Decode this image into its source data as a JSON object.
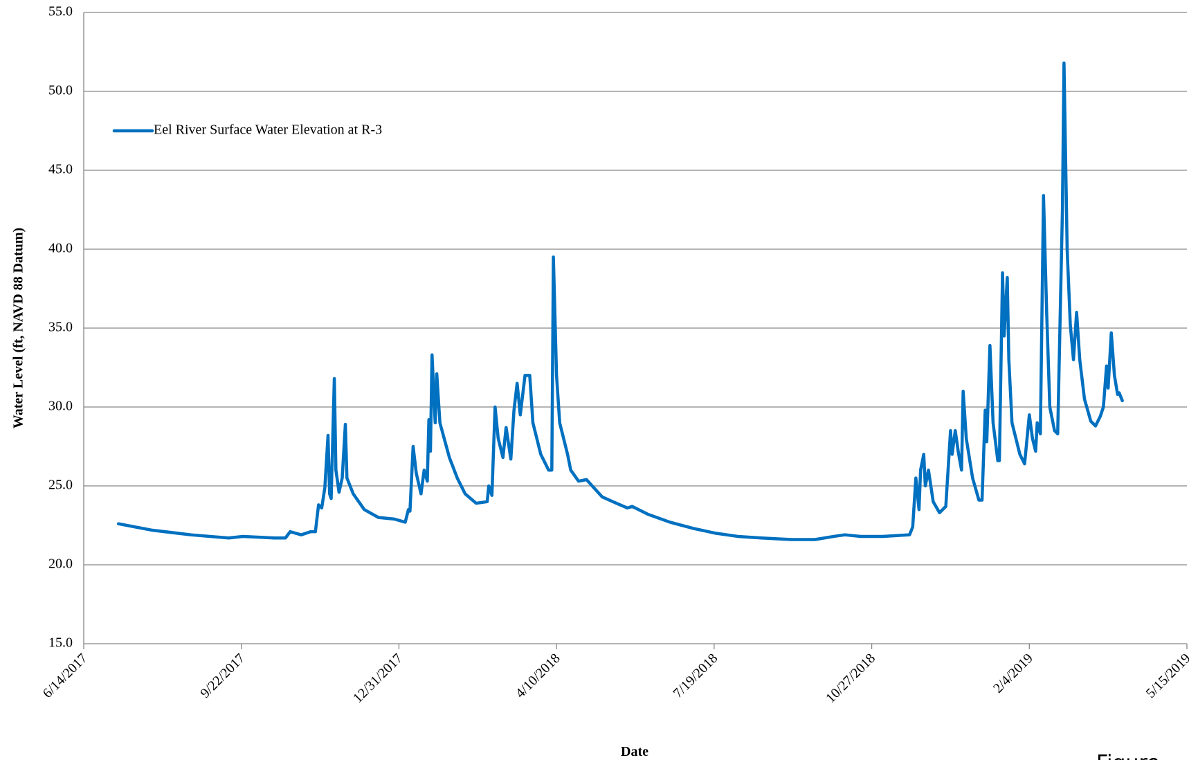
{
  "chart_data": {
    "type": "line",
    "y_label": "Water Level (ft, NAVD 88 Datum)",
    "x_label": "Date",
    "annotation": "Figure",
    "legend": "upper left",
    "grid": true,
    "x": [
      "7/6/2017",
      "7/27/2017",
      "8/21/2017",
      "9/14/2017",
      "9/23/2017",
      "10/13/2017",
      "10/20/2017",
      "10/23/2017",
      "10/30/2017",
      "11/5/2017",
      "11/8/2017",
      "11/10/2017",
      "11/12/2017",
      "11/14/2017",
      "11/16/2017",
      "11/17/2017",
      "11/18/2017",
      "11/20/2017",
      "11/21/2017",
      "11/23/2017",
      "11/25/2017",
      "11/27/2017",
      "11/28/2017",
      "12/2/2017",
      "12/9/2017",
      "12/18/2017",
      "12/28/2017",
      "1/4/2018",
      "1/6/2018",
      "1/7/2018",
      "1/9/2018",
      "1/11/2018",
      "1/14/2018",
      "1/16/2018",
      "1/18/2018",
      "1/19/2018",
      "1/20/2018",
      "1/21/2018",
      "1/23/2018",
      "1/24/2018",
      "1/26/2018",
      "2/1/2018",
      "2/6/2018",
      "2/11/2018",
      "2/18/2018",
      "2/25/2018",
      "2/26/2018",
      "2/28/2018",
      "3/2/2018",
      "3/4/2018",
      "3/7/2018",
      "3/9/2018",
      "3/12/2018",
      "3/14/2018",
      "3/16/2018",
      "3/18/2018",
      "3/21/2018",
      "3/24/2018",
      "3/26/2018",
      "3/31/2018",
      "4/5/2018",
      "4/7/2018",
      "4/8/2018",
      "4/10/2018",
      "4/12/2018",
      "4/14/2018",
      "4/17/2018",
      "4/19/2018",
      "4/24/2018",
      "4/29/2018",
      "5/9/2018",
      "5/18/2018",
      "5/25/2018",
      "5/28/2018",
      "6/7/2018",
      "6/21/2018",
      "7/6/2018",
      "7/20/2018",
      "8/3/2018",
      "8/18/2018",
      "9/6/2018",
      "9/21/2018",
      "10/3/2018",
      "10/10/2018",
      "10/20/2018",
      "11/3/2018",
      "11/20/2018",
      "11/22/2018",
      "11/24/2018",
      "11/26/2018",
      "11/27/2018",
      "11/29/2018",
      "11/30/2018",
      "12/2/2018",
      "12/5/2018",
      "12/9/2018",
      "12/13/2018",
      "12/16/2018",
      "12/17/2018",
      "12/19/2018",
      "12/21/2018",
      "12/23/2018",
      "12/24/2018",
      "12/26/2018",
      "12/30/2018",
      "1/3/2019",
      "1/5/2019",
      "1/7/2019",
      "1/8/2019",
      "1/10/2019",
      "1/12/2019",
      "1/15/2019",
      "1/16/2019",
      "1/18/2019",
      "1/19/2019",
      "1/21/2019",
      "1/22/2019",
      "1/24/2019",
      "1/29/2019",
      "2/1/2019",
      "2/4/2019",
      "2/6/2019",
      "2/8/2019",
      "2/9/2019",
      "2/11/2019",
      "2/13/2019",
      "2/15/2019",
      "2/17/2019",
      "2/20/2019",
      "2/22/2019",
      "2/25/2019",
      "2/26/2019",
      "2/28/2019",
      "3/2/2019",
      "3/4/2019",
      "3/6/2019",
      "3/8/2019",
      "3/11/2019",
      "3/15/2019",
      "3/18/2019",
      "3/21/2019",
      "3/23/2019",
      "3/25/2019",
      "3/26/2019",
      "3/28/2019",
      "3/30/2019",
      "4/1/2019",
      "4/2/2019",
      "4/4/2019"
    ],
    "series": [
      {
        "name": "Eel River Surface Water Elevation at R-3",
        "color": "#0070c0",
        "values": [
          22.6,
          22.2,
          21.9,
          21.7,
          21.8,
          21.7,
          21.7,
          22.1,
          21.9,
          22.1,
          22.1,
          23.8,
          23.6,
          24.9,
          28.2,
          24.5,
          24.2,
          31.8,
          26,
          24.6,
          25.5,
          28.9,
          25.5,
          24.5,
          23.5,
          23,
          22.9,
          22.7,
          23.5,
          23.4,
          27.5,
          25.8,
          24.5,
          26,
          25.3,
          29.2,
          27.2,
          33.3,
          29,
          32.1,
          29,
          26.8,
          25.5,
          24.5,
          23.9,
          24,
          25,
          24.4,
          30,
          28,
          26.8,
          28.7,
          26.7,
          29.8,
          31.5,
          29.5,
          32,
          32,
          29,
          27,
          26,
          26,
          39.5,
          32,
          29,
          28.2,
          27,
          26,
          25.3,
          25.4,
          24.3,
          23.9,
          23.6,
          23.7,
          23.2,
          22.7,
          22.3,
          22,
          21.8,
          21.7,
          21.6,
          21.6,
          21.8,
          21.9,
          21.8,
          21.8,
          21.9,
          22.4,
          25.5,
          23.5,
          26,
          27,
          25,
          26,
          24,
          23.3,
          23.7,
          28.5,
          27,
          28.5,
          27.1,
          26,
          31,
          28,
          25.5,
          24.1,
          24.1,
          29.8,
          27.8,
          33.9,
          29,
          26.6,
          26.6,
          38.5,
          34.5,
          38.2,
          33,
          29,
          27,
          26.4,
          29.5,
          28,
          27.2,
          29,
          28.3,
          43.4,
          36,
          30,
          28.5,
          28.3,
          42.5,
          51.8,
          40,
          35.2,
          33,
          36,
          33,
          30.5,
          29.1,
          28.8,
          29.4,
          30,
          32.6,
          31.2,
          34.7,
          32,
          30.8,
          30.9,
          30.4
        ]
      }
    ],
    "xlim": [
      "6/14/2017",
      "5/15/2019"
    ],
    "xticks": [
      "6/14/2017",
      "9/22/2017",
      "12/31/2017",
      "4/10/2018",
      "7/19/2018",
      "10/27/2018",
      "2/4/2019",
      "5/15/2019"
    ],
    "ylim": [
      15,
      55
    ],
    "yticks": [
      {
        "value": 15,
        "label": "15.0"
      },
      {
        "value": 20,
        "label": "20.0"
      },
      {
        "value": 25,
        "label": "25.0"
      },
      {
        "value": 30,
        "label": "30.0"
      },
      {
        "value": 35,
        "label": "35.0"
      },
      {
        "value": 40,
        "label": "40.0"
      },
      {
        "value": 45,
        "label": "45.0"
      },
      {
        "value": 50,
        "label": "50.0"
      },
      {
        "value": 55,
        "label": "55.0"
      }
    ]
  }
}
